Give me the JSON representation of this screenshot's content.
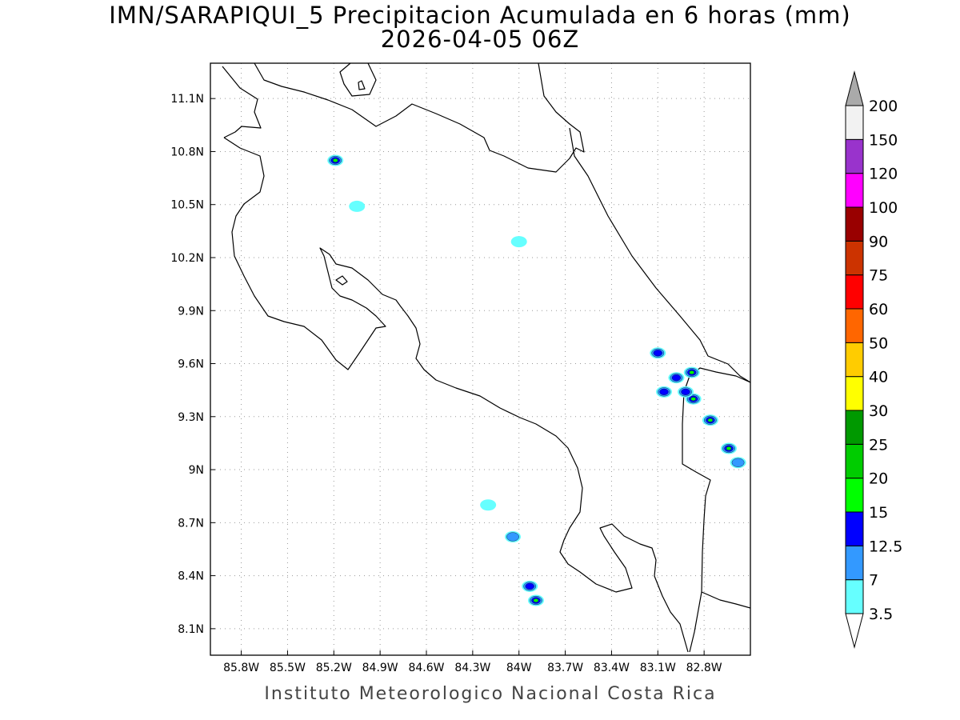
{
  "title": {
    "line1": "IMN/SARAPIQUI_5 Precipitacion Acumulada en 6 horas (mm)",
    "line2": "2026-04-05 06Z"
  },
  "axes": {
    "lon_ticks": [
      "85.8W",
      "85.5W",
      "85.2W",
      "84.9W",
      "84.6W",
      "84.3W",
      "84W",
      "83.7W",
      "83.4W",
      "83.1W",
      "82.8W"
    ],
    "lat_ticks": [
      "11.1N",
      "10.8N",
      "10.5N",
      "10.2N",
      "9.9N",
      "9.6N",
      "9.3N",
      "9N",
      "8.7N",
      "8.4N",
      "8.1N"
    ],
    "lon_range": [
      -86.0,
      -82.5
    ],
    "lat_range": [
      7.95,
      11.3
    ]
  },
  "colorbar": {
    "labels": [
      "3.5",
      "7",
      "12.5",
      "15",
      "20",
      "25",
      "30",
      "40",
      "50",
      "60",
      "75",
      "90",
      "100",
      "120",
      "150",
      "200"
    ],
    "colors": [
      "#66ffff",
      "#3399ff",
      "#0000ff",
      "#00ff00",
      "#00cc00",
      "#009900",
      "#ffff00",
      "#ffcc00",
      "#ff6600",
      "#ff0000",
      "#cc3300",
      "#990000",
      "#ff00ff",
      "#9933cc",
      "#f2f2f2",
      "#aaaaaa"
    ]
  },
  "precip_cells": [
    {
      "lon": -85.19,
      "lat": 10.75,
      "level": 3
    },
    {
      "lon": -85.05,
      "lat": 10.49,
      "level": 0
    },
    {
      "lon": -84.0,
      "lat": 10.29,
      "level": 0
    },
    {
      "lon": -83.89,
      "lat": 8.26,
      "level": 3
    },
    {
      "lon": -83.93,
      "lat": 8.34,
      "level": 2
    },
    {
      "lon": -84.04,
      "lat": 8.62,
      "level": 1
    },
    {
      "lon": -84.2,
      "lat": 8.8,
      "level": 0
    },
    {
      "lon": -83.1,
      "lat": 9.66,
      "level": 2
    },
    {
      "lon": -82.98,
      "lat": 9.52,
      "level": 2
    },
    {
      "lon": -83.06,
      "lat": 9.44,
      "level": 2
    },
    {
      "lon": -82.88,
      "lat": 9.55,
      "level": 3
    },
    {
      "lon": -82.87,
      "lat": 9.4,
      "level": 3
    },
    {
      "lon": -82.76,
      "lat": 9.28,
      "level": 3
    },
    {
      "lon": -82.64,
      "lat": 9.12,
      "level": 3
    },
    {
      "lon": -82.58,
      "lat": 9.04,
      "level": 1
    },
    {
      "lon": -82.92,
      "lat": 9.44,
      "level": 2
    }
  ],
  "footer": "Instituto Meteorologico Nacional Costa Rica"
}
